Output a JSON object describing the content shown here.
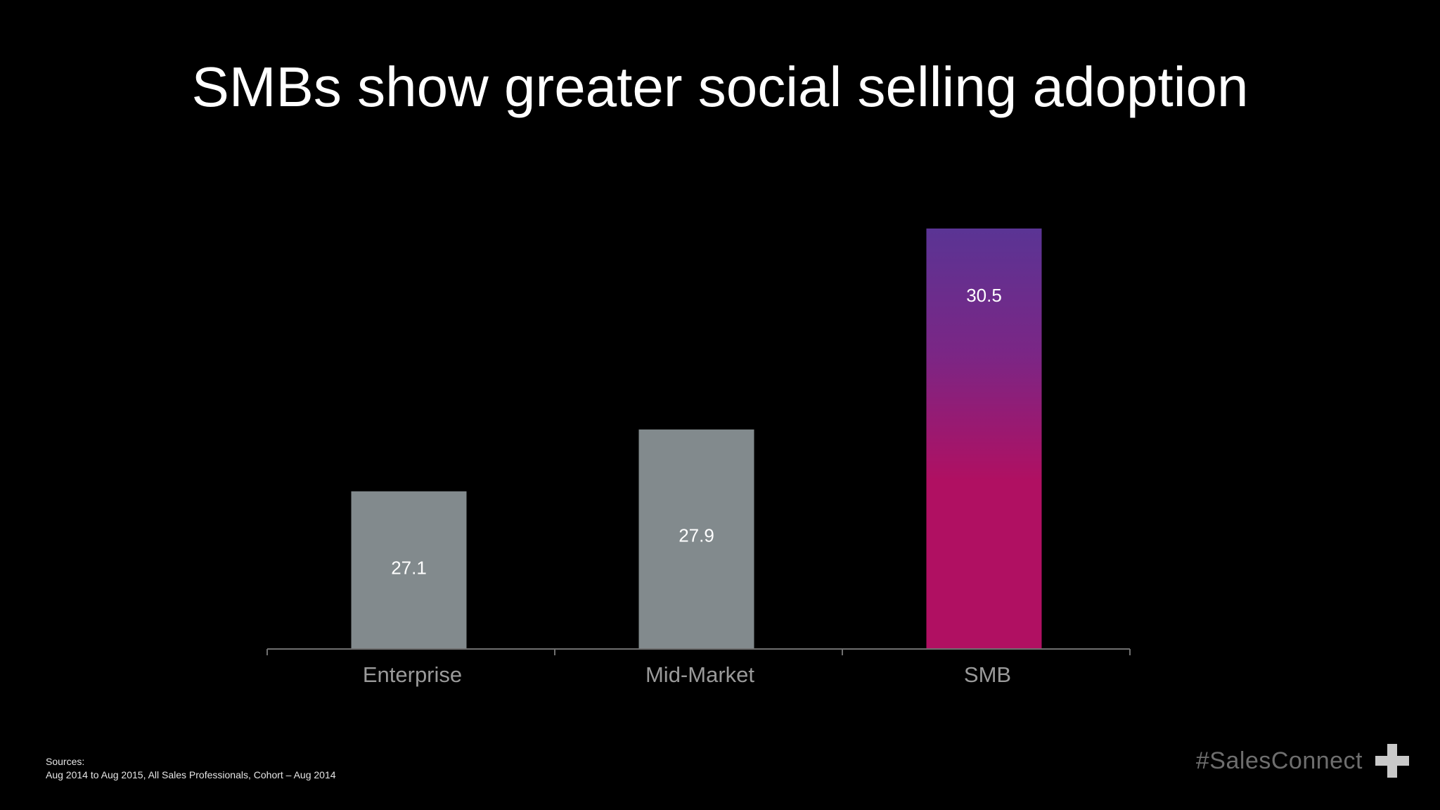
{
  "title": "SMBs show greater social selling adoption",
  "chart_data": {
    "type": "bar",
    "categories": [
      "Enterprise",
      "Mid-Market",
      "SMB"
    ],
    "values": [
      27.1,
      27.9,
      30.5
    ],
    "data_labels": [
      "27.1",
      "27.9",
      "30.5"
    ],
    "baseline": 25.06,
    "colors": {
      "default_bar": "#828a8d",
      "highlight_top": "#5a3494",
      "highlight_bottom": "#b01062",
      "axis": "#6f6f6f",
      "tick_label": "#9a9a9a",
      "data_label": "#ffffff"
    },
    "highlight_index": 2,
    "grid": false,
    "legend": "none"
  },
  "sources": {
    "heading": "Sources:",
    "line": "Aug 2014 to Aug 2015, All Sales Professionals, Cohort – Aug 2014"
  },
  "brand": {
    "hashtag": "#SalesConnect",
    "icon": "plus-icon"
  }
}
